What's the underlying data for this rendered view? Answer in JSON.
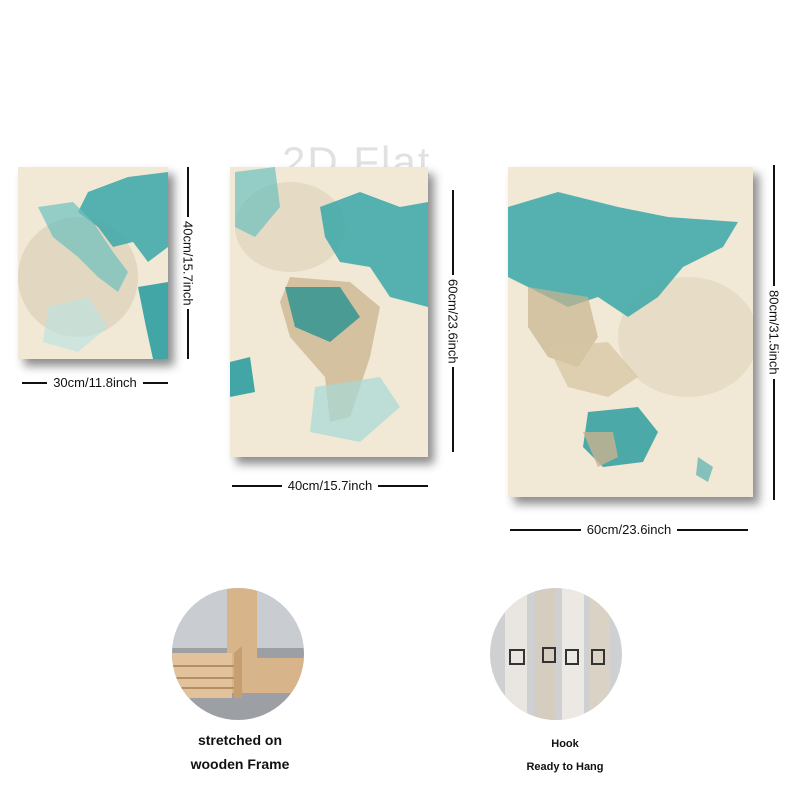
{
  "watermark": "2D Flat",
  "panels": {
    "small": {
      "width_label": "30cm/11.8inch",
      "height_label": "40cm/15.7inch"
    },
    "medium": {
      "width_label": "40cm/15.7inch",
      "height_label": "60cm/23.6inch"
    },
    "large": {
      "width_label": "60cm/23.6inch",
      "height_label": "80cm/31.5inch"
    }
  },
  "features": {
    "frame": {
      "line1": "stretched on",
      "line2": "wooden Frame"
    },
    "hook": {
      "line1": "Hook",
      "line2": "Ready to Hang"
    }
  },
  "colors": {
    "canvas": "#f1e9d5",
    "teal": "#3aa7a8",
    "tan": "#c9b38e"
  }
}
